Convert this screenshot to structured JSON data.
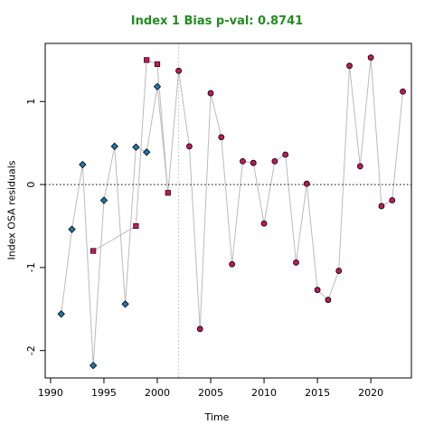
{
  "chart_data": {
    "type": "scatter",
    "title": "Index 1 Bias p-val: 0.8741",
    "xlabel": "Time",
    "ylabel": "Index OSA residuals",
    "xlim": [
      1989.5,
      2023.8
    ],
    "ylim": [
      -2.33,
      1.7
    ],
    "x_ticks": [
      1990,
      1995,
      2000,
      2005,
      2010,
      2015,
      2020
    ],
    "y_ticks": [
      -2,
      -1,
      0,
      1
    ],
    "zero_line": 0,
    "vertical_line_x": 2002,
    "series": [
      {
        "marker": "diamond",
        "color": "#1F78B4",
        "points": [
          {
            "x": 1991,
            "y": -1.56
          },
          {
            "x": 1992,
            "y": -0.54
          },
          {
            "x": 1993,
            "y": 0.24
          },
          {
            "x": 1994,
            "y": -2.18
          },
          {
            "x": 1995,
            "y": -0.19
          },
          {
            "x": 1996,
            "y": 0.46
          },
          {
            "x": 1997,
            "y": -1.44
          },
          {
            "x": 1998,
            "y": 0.45
          },
          {
            "x": 1999,
            "y": 0.39
          },
          {
            "x": 2000,
            "y": 1.18
          }
        ]
      },
      {
        "marker": "square",
        "color": "#C2185B",
        "points": [
          {
            "x": 1994,
            "y": -0.8
          },
          {
            "x": 1998,
            "y": -0.5
          },
          {
            "x": 1999,
            "y": 1.5
          },
          {
            "x": 2000,
            "y": 1.45
          },
          {
            "x": 2001,
            "y": -0.1
          }
        ]
      },
      {
        "marker": "circle",
        "color": "#C2185B",
        "points": [
          {
            "x": 2002,
            "y": 1.37
          },
          {
            "x": 2003,
            "y": 0.46
          },
          {
            "x": 2004,
            "y": -1.74
          },
          {
            "x": 2005,
            "y": 1.1
          },
          {
            "x": 2006,
            "y": 0.57
          },
          {
            "x": 2007,
            "y": -0.96
          },
          {
            "x": 2008,
            "y": 0.28
          },
          {
            "x": 2009,
            "y": 0.26
          },
          {
            "x": 2010,
            "y": -0.47
          },
          {
            "x": 2011,
            "y": 0.28
          },
          {
            "x": 2012,
            "y": 0.36
          },
          {
            "x": 2013,
            "y": -0.94
          },
          {
            "x": 2014,
            "y": 0.01
          },
          {
            "x": 2015,
            "y": -1.27
          },
          {
            "x": 2016,
            "y": -1.39
          },
          {
            "x": 2017,
            "y": -1.04
          },
          {
            "x": 2018,
            "y": 1.43
          },
          {
            "x": 2019,
            "y": 0.22
          },
          {
            "x": 2020,
            "y": 1.53
          },
          {
            "x": 2021,
            "y": -0.26
          },
          {
            "x": 2022,
            "y": -0.19
          },
          {
            "x": 2023,
            "y": 1.12
          }
        ]
      }
    ],
    "connecting_line": {
      "color": "#BBBBBB",
      "points": [
        {
          "x": 1991,
          "y": -1.56
        },
        {
          "x": 1992,
          "y": -0.54
        },
        {
          "x": 1993,
          "y": 0.24
        },
        {
          "x": 1994,
          "y": -2.18
        },
        {
          "x": 1995,
          "y": -0.19
        },
        {
          "x": 1996,
          "y": 0.46
        },
        {
          "x": 1997,
          "y": -1.44
        },
        {
          "x": 1998,
          "y": 0.45
        },
        {
          "x": 1999,
          "y": 0.39
        },
        {
          "x": 2000,
          "y": 1.18
        },
        {
          "x": 2001,
          "y": -0.1
        },
        {
          "x": 2002,
          "y": 1.37
        },
        {
          "x": 2003,
          "y": 0.46
        },
        {
          "x": 2004,
          "y": -1.74
        },
        {
          "x": 2005,
          "y": 1.1
        },
        {
          "x": 2006,
          "y": 0.57
        },
        {
          "x": 2007,
          "y": -0.96
        },
        {
          "x": 2008,
          "y": 0.28
        },
        {
          "x": 2009,
          "y": 0.26
        },
        {
          "x": 2010,
          "y": -0.47
        },
        {
          "x": 2011,
          "y": 0.28
        },
        {
          "x": 2012,
          "y": 0.36
        },
        {
          "x": 2013,
          "y": -0.94
        },
        {
          "x": 2014,
          "y": 0.01
        },
        {
          "x": 2015,
          "y": -1.27
        },
        {
          "x": 2016,
          "y": -1.39
        },
        {
          "x": 2017,
          "y": -1.04
        },
        {
          "x": 2018,
          "y": 1.43
        },
        {
          "x": 2019,
          "y": 0.22
        },
        {
          "x": 2020,
          "y": 1.53
        },
        {
          "x": 2021,
          "y": -0.26
        },
        {
          "x": 2022,
          "y": -0.19
        },
        {
          "x": 2023,
          "y": 1.12
        }
      ]
    },
    "extra_segments": [
      [
        {
          "x": 1994,
          "y": -0.8
        },
        {
          "x": 1998,
          "y": -0.5
        }
      ],
      [
        {
          "x": 1998,
          "y": -0.5
        },
        {
          "x": 1999,
          "y": 1.5
        }
      ],
      [
        {
          "x": 1999,
          "y": 1.5
        },
        {
          "x": 2000,
          "y": 1.45
        }
      ],
      [
        {
          "x": 2000,
          "y": 1.45
        },
        {
          "x": 2001,
          "y": -0.1
        }
      ]
    ]
  }
}
